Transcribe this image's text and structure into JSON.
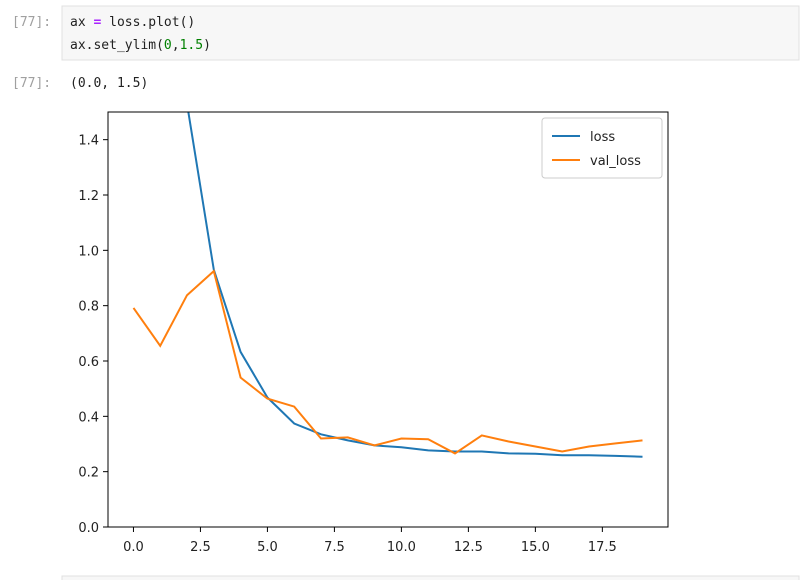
{
  "cells": [
    {
      "prompt": "[77]:",
      "code": [
        [
          "ax",
          " = ",
          "loss.plot()"
        ],
        [
          "ax.set_ylim(",
          "0",
          ",",
          "1.5",
          ")"
        ]
      ]
    },
    {
      "prompt": "[77]:",
      "output": "(0.0, 1.5)"
    }
  ],
  "chart_data": {
    "type": "line",
    "x": [
      0,
      1,
      2,
      3,
      4,
      5,
      6,
      7,
      8,
      9,
      10,
      11,
      12,
      13,
      14,
      15,
      16,
      17,
      18,
      19
    ],
    "series": [
      {
        "name": "loss",
        "color": "#1f77b4",
        "values": [
          null,
          null,
          1.53,
          0.93,
          0.633,
          0.468,
          0.374,
          0.335,
          0.313,
          0.295,
          0.288,
          0.277,
          0.273,
          0.273,
          0.266,
          0.265,
          0.259,
          0.259,
          0.257,
          0.254
        ]
      },
      {
        "name": "val_loss",
        "color": "#ff7f0e",
        "values": [
          0.792,
          0.655,
          0.838,
          0.925,
          0.54,
          0.464,
          0.435,
          0.32,
          0.324,
          0.295,
          0.32,
          0.317,
          0.266,
          0.331,
          0.309,
          0.291,
          0.273,
          0.291,
          0.302,
          0.313
        ]
      }
    ],
    "xlim": [
      -0.95,
      19.95
    ],
    "ylim": [
      0,
      1.5
    ],
    "xticks": [
      {
        "value": 0,
        "label": "0.0"
      },
      2.5,
      {
        "value": 5,
        "label": "5.0"
      },
      7.5,
      {
        "value": 10,
        "label": "10.0"
      },
      12.5,
      {
        "value": 15,
        "label": "15.0"
      },
      17.5
    ],
    "yticks": [
      {
        "value": 0,
        "label": "0.0"
      },
      0.2,
      0.4,
      0.6,
      0.8,
      {
        "value": 1,
        "label": "1.0"
      },
      1.2,
      1.4
    ],
    "legend": "upper right"
  }
}
